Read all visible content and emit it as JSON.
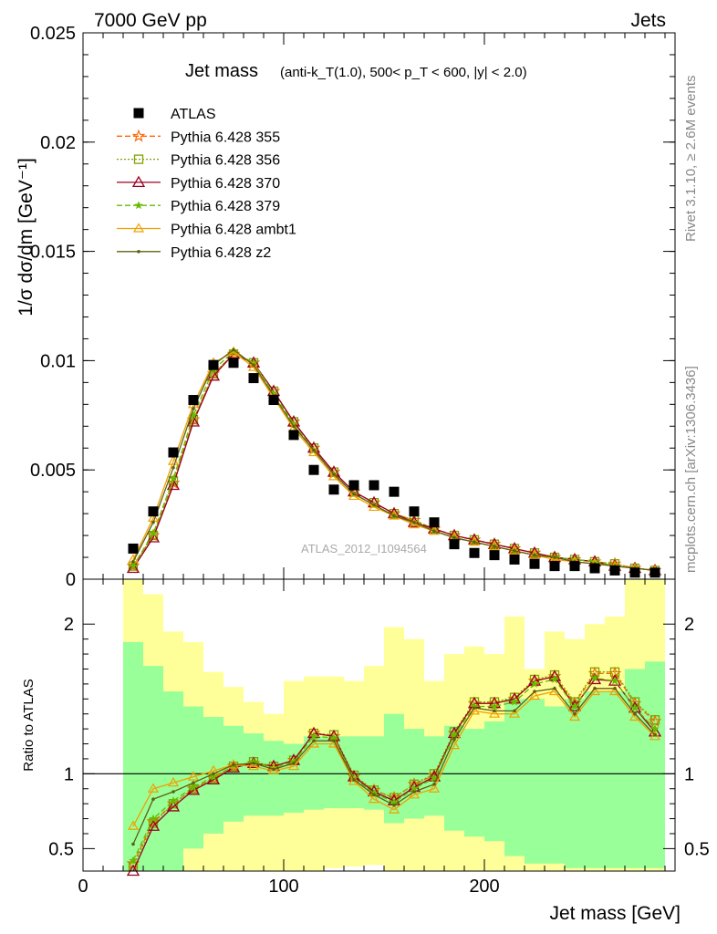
{
  "header": {
    "left": "7000 GeV pp",
    "right": "Jets"
  },
  "side_labels": {
    "rivet": "Rivet 3.1.10, ≥ 2.6M events",
    "mcplots": "mcplots.cern.ch [arXiv:1306.3436]"
  },
  "colors": {
    "atlas": "#000000",
    "p355": "#ff6600",
    "p356": "#80a000",
    "p370": "#990022",
    "p379": "#66bb00",
    "ambt1": "#f0a000",
    "z2": "#606010",
    "band_inner": "#99ff99",
    "band_outer": "#ffff99"
  },
  "chart_data": [
    {
      "type": "scatter",
      "panel": "main",
      "title_main": "Jet mass",
      "title_cuts": "(anti-k_T(1.0), 500< p_T < 600, |y| < 2.0)",
      "ylabel": "1/σ dσ/dm [GeV⁻¹]",
      "watermark": "ATLAS_2012_I1094564",
      "xlim": [
        0,
        295
      ],
      "ylim": [
        0,
        0.025
      ],
      "yticks": [
        "0",
        "0.005",
        "0.01",
        "0.015",
        "0.02",
        "0.025"
      ],
      "legend_position": "top-left",
      "x": [
        25,
        35,
        45,
        55,
        65,
        75,
        85,
        95,
        105,
        115,
        125,
        135,
        145,
        155,
        165,
        175,
        185,
        195,
        205,
        215,
        225,
        235,
        245,
        255,
        265,
        275,
        285
      ],
      "series": [
        {
          "name": "ATLAS",
          "marker": "square",
          "values": [
            0.0014,
            0.0031,
            0.0058,
            0.0082,
            0.0098,
            0.0099,
            0.0092,
            0.0082,
            0.0066,
            0.005,
            0.0041,
            0.0043,
            0.0043,
            0.004,
            0.0031,
            0.0026,
            0.0016,
            0.0012,
            0.0011,
            0.0009,
            0.0007,
            0.0006,
            0.0006,
            0.0005,
            0.0004,
            0.0003,
            0.0003
          ]
        },
        {
          "name": "Pythia 6.428 355",
          "marker": "star-open",
          "values": [
            0.0006,
            0.002,
            0.0044,
            0.0073,
            0.0094,
            0.0103,
            0.0099,
            0.0086,
            0.0072,
            0.006,
            0.0049,
            0.004,
            0.0035,
            0.003,
            0.0027,
            0.0023,
            0.002,
            0.0018,
            0.0016,
            0.0014,
            0.0012,
            0.001,
            0.0009,
            0.0008,
            0.0007,
            0.0005,
            0.0004
          ]
        },
        {
          "name": "Pythia 6.428 356",
          "marker": "square-open",
          "values": [
            0.0006,
            0.002,
            0.0045,
            0.0073,
            0.0094,
            0.0103,
            0.0099,
            0.0086,
            0.0072,
            0.006,
            0.0049,
            0.004,
            0.0035,
            0.003,
            0.0027,
            0.0023,
            0.002,
            0.0018,
            0.0016,
            0.0014,
            0.0012,
            0.001,
            0.0009,
            0.0008,
            0.0007,
            0.0005,
            0.0004
          ]
        },
        {
          "name": "Pythia 6.428 370",
          "marker": "triangle-open",
          "values": [
            0.0005,
            0.0019,
            0.0043,
            0.0072,
            0.0093,
            0.0103,
            0.0099,
            0.0086,
            0.0072,
            0.006,
            0.0049,
            0.004,
            0.0035,
            0.003,
            0.0026,
            0.0023,
            0.002,
            0.0018,
            0.0016,
            0.0014,
            0.0012,
            0.001,
            0.0009,
            0.0008,
            0.0006,
            0.0005,
            0.0004
          ]
        },
        {
          "name": "Pythia 6.428 379",
          "marker": "star",
          "values": [
            0.0006,
            0.0021,
            0.0046,
            0.0075,
            0.0096,
            0.0104,
            0.0099,
            0.0085,
            0.0071,
            0.0059,
            0.0048,
            0.0039,
            0.0034,
            0.0029,
            0.0026,
            0.0022,
            0.0019,
            0.0017,
            0.0015,
            0.0013,
            0.0011,
            0.001,
            0.0009,
            0.0008,
            0.0006,
            0.0005,
            0.0004
          ]
        },
        {
          "name": "Pythia 6.428 ambt1",
          "marker": "triangle-open-small",
          "values": [
            0.0009,
            0.0028,
            0.0054,
            0.008,
            0.0099,
            0.0104,
            0.0097,
            0.0083,
            0.0069,
            0.0058,
            0.0047,
            0.0038,
            0.0033,
            0.0029,
            0.0025,
            0.0022,
            0.0019,
            0.0017,
            0.0015,
            0.0013,
            0.0011,
            0.0009,
            0.0008,
            0.0007,
            0.0006,
            0.0005,
            0.0004
          ]
        },
        {
          "name": "Pythia 6.428 z2",
          "marker": "dot",
          "values": [
            0.0008,
            0.0026,
            0.0051,
            0.0078,
            0.0098,
            0.0105,
            0.0098,
            0.0084,
            0.007,
            0.0059,
            0.0048,
            0.0039,
            0.0034,
            0.0029,
            0.0026,
            0.0022,
            0.0019,
            0.0017,
            0.0015,
            0.0013,
            0.0011,
            0.001,
            0.0008,
            0.0007,
            0.0006,
            0.0005,
            0.0004
          ]
        }
      ]
    },
    {
      "type": "line",
      "panel": "ratio",
      "ylabel": "Ratio to ATLAS",
      "xlabel": "Jet mass [GeV]",
      "xlim": [
        0,
        295
      ],
      "ylim": [
        0.35,
        2.3
      ],
      "xticks": [
        "0",
        "100",
        "200"
      ],
      "yticks": [
        "0.5",
        "1",
        "2"
      ],
      "reference_line": 1,
      "bins": [
        [
          20,
          30
        ],
        [
          30,
          40
        ],
        [
          40,
          50
        ],
        [
          50,
          60
        ],
        [
          60,
          70
        ],
        [
          70,
          80
        ],
        [
          80,
          90
        ],
        [
          90,
          100
        ],
        [
          100,
          110
        ],
        [
          110,
          120
        ],
        [
          120,
          130
        ],
        [
          130,
          140
        ],
        [
          140,
          150
        ],
        [
          150,
          160
        ],
        [
          160,
          170
        ],
        [
          170,
          180
        ],
        [
          180,
          190
        ],
        [
          190,
          200
        ],
        [
          200,
          210
        ],
        [
          210,
          220
        ],
        [
          220,
          230
        ],
        [
          230,
          240
        ],
        [
          240,
          250
        ],
        [
          250,
          260
        ],
        [
          260,
          270
        ],
        [
          270,
          280
        ],
        [
          280,
          290
        ]
      ],
      "band_inner": [
        [
          0.35,
          1.88
        ],
        [
          0.35,
          1.72
        ],
        [
          0.35,
          1.55
        ],
        [
          0.5,
          1.45
        ],
        [
          0.6,
          1.38
        ],
        [
          0.68,
          1.32
        ],
        [
          0.72,
          1.27
        ],
        [
          0.72,
          1.22
        ],
        [
          0.74,
          1.2
        ],
        [
          0.76,
          1.25
        ],
        [
          0.77,
          1.25
        ],
        [
          0.77,
          1.25
        ],
        [
          0.76,
          1.25
        ],
        [
          0.67,
          1.4
        ],
        [
          0.7,
          1.3
        ],
        [
          0.72,
          1.25
        ],
        [
          0.62,
          1.32
        ],
        [
          0.58,
          1.3
        ],
        [
          0.55,
          1.35
        ],
        [
          0.45,
          1.5
        ],
        [
          0.4,
          1.5
        ],
        [
          0.4,
          1.45
        ],
        [
          0.37,
          1.5
        ],
        [
          0.37,
          1.55
        ],
        [
          0.37,
          1.55
        ],
        [
          0.37,
          1.7
        ],
        [
          0.37,
          1.75
        ]
      ],
      "band_outer": [
        [
          0.35,
          2.3
        ],
        [
          0.35,
          2.2
        ],
        [
          0.35,
          1.95
        ],
        [
          0.35,
          1.88
        ],
        [
          0.35,
          1.68
        ],
        [
          0.35,
          1.58
        ],
        [
          0.35,
          1.48
        ],
        [
          0.35,
          1.4
        ],
        [
          0.35,
          1.62
        ],
        [
          0.35,
          1.65
        ],
        [
          0.37,
          1.65
        ],
        [
          0.38,
          1.62
        ],
        [
          0.39,
          1.72
        ],
        [
          0.35,
          1.98
        ],
        [
          0.35,
          1.9
        ],
        [
          0.35,
          1.62
        ],
        [
          0.35,
          1.8
        ],
        [
          0.35,
          1.85
        ],
        [
          0.35,
          1.8
        ],
        [
          0.35,
          2.05
        ],
        [
          0.35,
          1.7
        ],
        [
          0.35,
          1.95
        ],
        [
          0.35,
          1.9
        ],
        [
          0.35,
          2.0
        ],
        [
          0.35,
          2.05
        ],
        [
          0.35,
          2.3
        ],
        [
          0.35,
          2.3
        ]
      ],
      "x": [
        25,
        35,
        45,
        55,
        65,
        75,
        85,
        95,
        105,
        115,
        125,
        135,
        145,
        155,
        165,
        175,
        185,
        195,
        205,
        215,
        225,
        235,
        245,
        255,
        265,
        275,
        285
      ],
      "series": [
        {
          "name": "Pythia 6.428 355",
          "values": [
            0.4,
            0.68,
            0.8,
            0.9,
            0.97,
            1.05,
            1.07,
            1.05,
            1.09,
            1.27,
            1.25,
            0.98,
            0.89,
            0.84,
            0.93,
            0.99,
            1.27,
            1.47,
            1.47,
            1.5,
            1.62,
            1.65,
            1.47,
            1.67,
            1.67,
            1.47,
            1.35
          ]
        },
        {
          "name": "Pythia 6.428 356",
          "values": [
            0.38,
            0.67,
            0.8,
            0.9,
            0.97,
            1.05,
            1.08,
            1.05,
            1.09,
            1.27,
            1.26,
            0.99,
            0.89,
            0.84,
            0.93,
            1.0,
            1.28,
            1.48,
            1.48,
            1.51,
            1.63,
            1.66,
            1.48,
            1.68,
            1.68,
            1.48,
            1.36
          ]
        },
        {
          "name": "Pythia 6.428 370",
          "values": [
            0.35,
            0.65,
            0.78,
            0.89,
            0.96,
            1.04,
            1.07,
            1.05,
            1.09,
            1.27,
            1.25,
            0.98,
            0.88,
            0.82,
            0.91,
            0.98,
            1.27,
            1.47,
            1.47,
            1.5,
            1.62,
            1.65,
            1.45,
            1.63,
            1.62,
            1.44,
            1.28
          ]
        },
        {
          "name": "Pythia 6.428 379",
          "values": [
            0.42,
            0.7,
            0.82,
            0.91,
            0.98,
            1.05,
            1.08,
            1.04,
            1.08,
            1.25,
            1.24,
            0.97,
            0.87,
            0.81,
            0.9,
            0.97,
            1.26,
            1.45,
            1.45,
            1.48,
            1.6,
            1.63,
            1.45,
            1.64,
            1.62,
            1.44,
            1.3
          ]
        },
        {
          "name": "Pythia 6.428 ambt1",
          "values": [
            0.65,
            0.9,
            0.94,
            0.98,
            1.02,
            1.06,
            1.05,
            1.02,
            1.05,
            1.2,
            1.2,
            0.95,
            0.83,
            0.76,
            0.86,
            0.9,
            1.19,
            1.42,
            1.4,
            1.4,
            1.52,
            1.55,
            1.38,
            1.55,
            1.55,
            1.38,
            1.25
          ]
        },
        {
          "name": "Pythia 6.428 z2",
          "values": [
            0.53,
            0.83,
            0.88,
            0.94,
            1.0,
            1.06,
            1.07,
            1.03,
            1.07,
            1.22,
            1.22,
            0.96,
            0.86,
            0.79,
            0.88,
            0.93,
            1.23,
            1.44,
            1.42,
            1.42,
            1.55,
            1.57,
            1.4,
            1.57,
            1.57,
            1.4,
            1.26
          ]
        }
      ]
    }
  ]
}
